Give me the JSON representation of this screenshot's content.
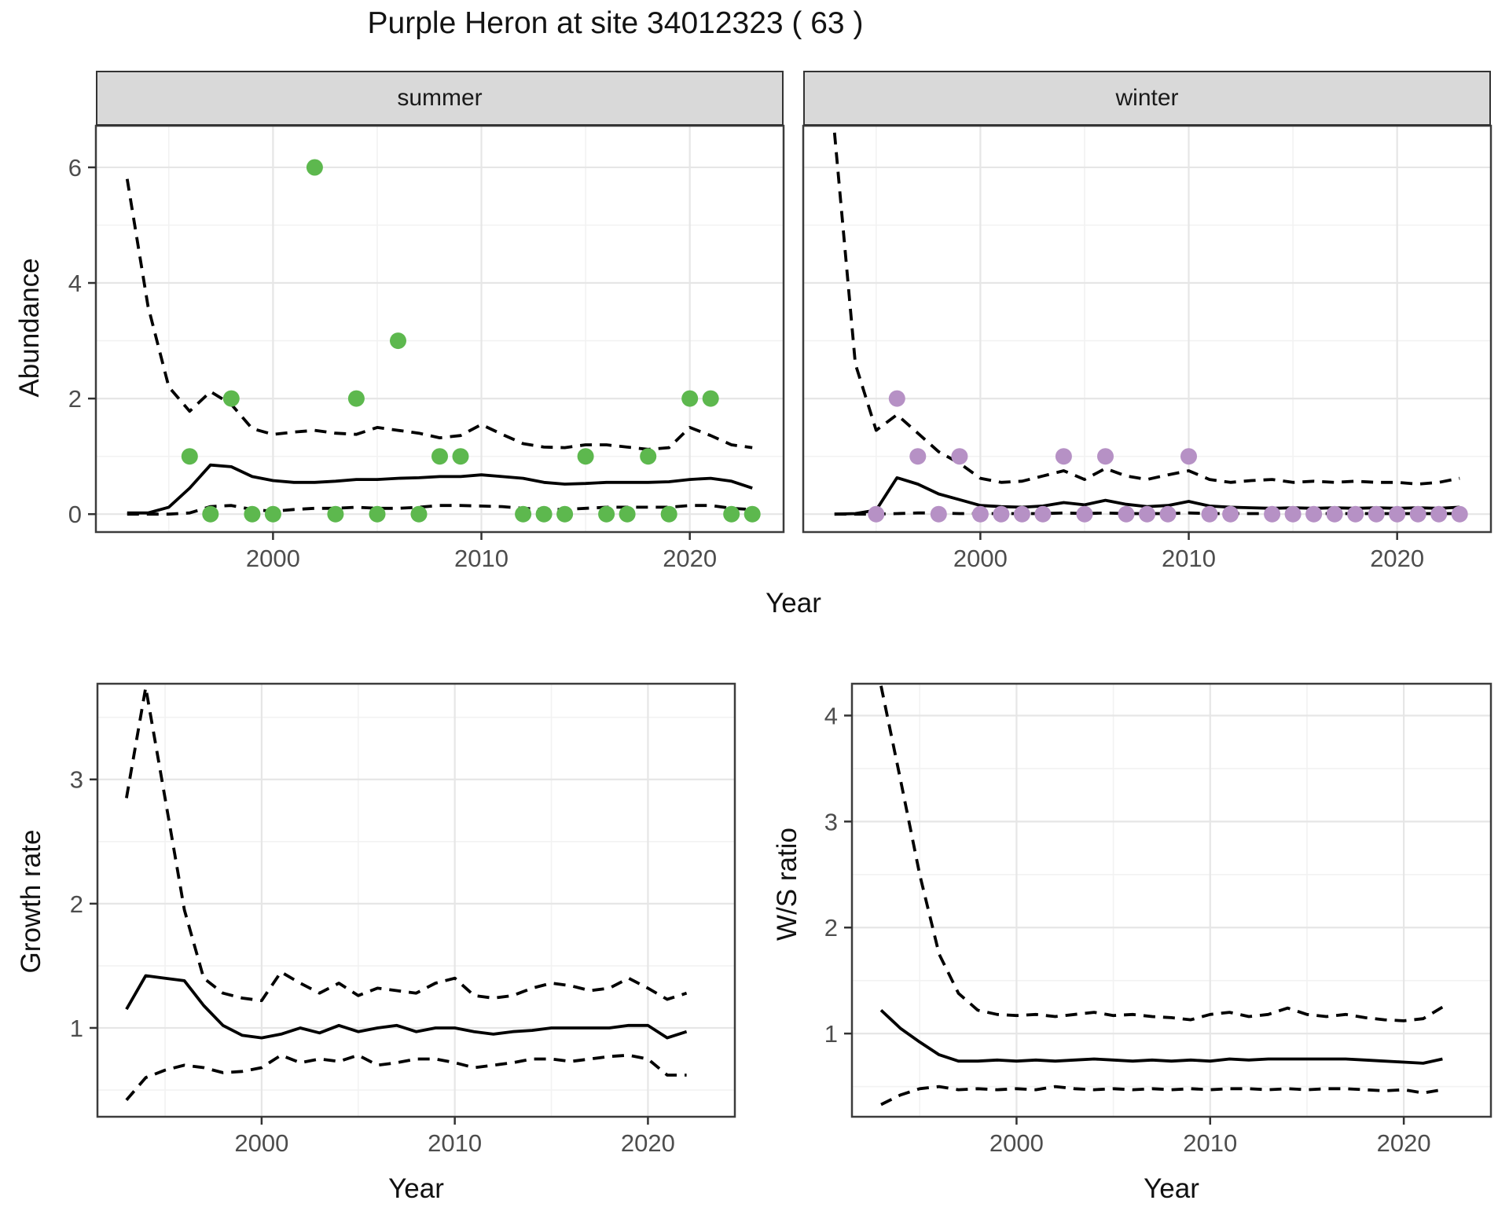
{
  "title": "Purple Heron at site 34012323 ( 63 )",
  "facet_labels": {
    "summer": "summer",
    "winter": "winter"
  },
  "axis_titles": {
    "x": "Year",
    "y_abundance": "Abundance",
    "y_growth": "Growth rate",
    "y_ws": "W/S ratio"
  },
  "colors": {
    "summer_points": "#5db84e",
    "winter_points": "#b691c5",
    "line": "#000000",
    "strip_bg": "#d9d9d9",
    "strip_border": "#333333",
    "panel_border": "#3c3c3c",
    "grid_major": "#e6e6e6",
    "grid_minor": "#f2f2f2",
    "tick_text": "#4d4d4d"
  },
  "chart_data": [
    {
      "id": "abundance-summer",
      "type": "line",
      "facet": "summer",
      "xlabel": "Year",
      "ylabel": "Abundance",
      "xlim": [
        1991.5,
        2024.5
      ],
      "ylim": [
        -0.31,
        6.72
      ],
      "xticks": [
        2000,
        2010,
        2020
      ],
      "xticks_minor": [
        1995,
        2005,
        2015
      ],
      "yticks": [
        0,
        2,
        4,
        6
      ],
      "yticks_minor": [
        1,
        3,
        5
      ],
      "x": [
        1993,
        1994,
        1995,
        1996,
        1997,
        1998,
        1999,
        2000,
        2001,
        2002,
        2003,
        2004,
        2005,
        2006,
        2007,
        2008,
        2009,
        2010,
        2011,
        2012,
        2013,
        2014,
        2015,
        2016,
        2017,
        2018,
        2019,
        2020,
        2021,
        2022,
        2023
      ],
      "series": [
        {
          "name": "mean",
          "style": "solid",
          "values": [
            0.02,
            0.02,
            0.12,
            0.45,
            0.85,
            0.82,
            0.65,
            0.58,
            0.55,
            0.55,
            0.57,
            0.6,
            0.6,
            0.62,
            0.63,
            0.65,
            0.65,
            0.68,
            0.65,
            0.62,
            0.55,
            0.52,
            0.53,
            0.55,
            0.55,
            0.55,
            0.56,
            0.6,
            0.62,
            0.57,
            0.45
          ]
        },
        {
          "name": "upper_ci",
          "style": "dashed",
          "values": [
            5.8,
            3.6,
            2.2,
            1.78,
            2.12,
            1.9,
            1.48,
            1.38,
            1.42,
            1.45,
            1.4,
            1.38,
            1.5,
            1.45,
            1.4,
            1.32,
            1.36,
            1.55,
            1.38,
            1.22,
            1.16,
            1.15,
            1.2,
            1.2,
            1.16,
            1.12,
            1.15,
            1.5,
            1.36,
            1.2,
            1.15
          ]
        },
        {
          "name": "lower_ci",
          "style": "dashed",
          "values": [
            0.0,
            0.0,
            0.0,
            0.02,
            0.13,
            0.15,
            0.08,
            0.05,
            0.08,
            0.1,
            0.1,
            0.12,
            0.1,
            0.1,
            0.12,
            0.15,
            0.15,
            0.14,
            0.13,
            0.1,
            0.08,
            0.08,
            0.1,
            0.12,
            0.12,
            0.12,
            0.12,
            0.15,
            0.15,
            0.1,
            0.08
          ]
        }
      ],
      "point_color": "#5db84e",
      "points": [
        [
          1996,
          1
        ],
        [
          1997,
          0
        ],
        [
          1998,
          2
        ],
        [
          1999,
          0
        ],
        [
          2000,
          0
        ],
        [
          2002,
          6
        ],
        [
          2003,
          0
        ],
        [
          2004,
          2
        ],
        [
          2005,
          0
        ],
        [
          2006,
          3
        ],
        [
          2007,
          0
        ],
        [
          2008,
          1
        ],
        [
          2009,
          1
        ],
        [
          2012,
          0
        ],
        [
          2013,
          0
        ],
        [
          2014,
          0
        ],
        [
          2015,
          1
        ],
        [
          2016,
          0
        ],
        [
          2017,
          0
        ],
        [
          2018,
          1
        ],
        [
          2019,
          0
        ],
        [
          2020,
          2
        ],
        [
          2021,
          2
        ],
        [
          2022,
          0
        ],
        [
          2023,
          0
        ]
      ]
    },
    {
      "id": "abundance-winter",
      "type": "line",
      "facet": "winter",
      "xlabel": "Year",
      "ylabel": "Abundance",
      "xlim": [
        1991.5,
        2024.5
      ],
      "ylim": [
        -0.31,
        6.72
      ],
      "xticks": [
        2000,
        2010,
        2020
      ],
      "xticks_minor": [
        1995,
        2005,
        2015
      ],
      "yticks": [
        0,
        2,
        4,
        6
      ],
      "yticks_minor": [
        1,
        3,
        5
      ],
      "x": [
        1993,
        1994,
        1995,
        1996,
        1997,
        1998,
        1999,
        2000,
        2001,
        2002,
        2003,
        2004,
        2005,
        2006,
        2007,
        2008,
        2009,
        2010,
        2011,
        2012,
        2013,
        2014,
        2015,
        2016,
        2017,
        2018,
        2019,
        2020,
        2021,
        2022,
        2023
      ],
      "series": [
        {
          "name": "mean",
          "style": "solid",
          "values": [
            0.0,
            0.01,
            0.07,
            0.63,
            0.52,
            0.35,
            0.25,
            0.15,
            0.13,
            0.12,
            0.14,
            0.2,
            0.16,
            0.24,
            0.17,
            0.13,
            0.15,
            0.22,
            0.14,
            0.12,
            0.11,
            0.1,
            0.11,
            0.1,
            0.11,
            0.1,
            0.11,
            0.1,
            0.11,
            0.1,
            0.12
          ]
        },
        {
          "name": "upper_ci",
          "style": "dashed",
          "values": [
            6.6,
            2.6,
            1.45,
            1.72,
            1.4,
            1.08,
            0.88,
            0.62,
            0.55,
            0.57,
            0.66,
            0.75,
            0.6,
            0.79,
            0.66,
            0.6,
            0.68,
            0.75,
            0.6,
            0.55,
            0.58,
            0.6,
            0.55,
            0.57,
            0.55,
            0.57,
            0.55,
            0.55,
            0.52,
            0.55,
            0.62
          ]
        },
        {
          "name": "lower_ci",
          "style": "dashed",
          "values": [
            0.0,
            0.0,
            0.0,
            0.01,
            0.02,
            0.02,
            0.01,
            0.01,
            0.01,
            0.01,
            0.01,
            0.02,
            0.01,
            0.02,
            0.01,
            0.01,
            0.01,
            0.02,
            0.01,
            0.01,
            0.01,
            0.01,
            0.01,
            0.01,
            0.01,
            0.01,
            0.01,
            0.01,
            0.01,
            0.01,
            0.01
          ]
        }
      ],
      "point_color": "#b691c5",
      "points": [
        [
          1995,
          0
        ],
        [
          1996,
          2
        ],
        [
          1997,
          1
        ],
        [
          1998,
          0
        ],
        [
          1999,
          1
        ],
        [
          2000,
          0
        ],
        [
          2001,
          0
        ],
        [
          2002,
          0
        ],
        [
          2003,
          0
        ],
        [
          2004,
          1
        ],
        [
          2005,
          0
        ],
        [
          2006,
          1
        ],
        [
          2007,
          0
        ],
        [
          2008,
          0
        ],
        [
          2009,
          0
        ],
        [
          2010,
          1
        ],
        [
          2011,
          0
        ],
        [
          2012,
          0
        ],
        [
          2014,
          0
        ],
        [
          2015,
          0
        ],
        [
          2016,
          0
        ],
        [
          2017,
          0
        ],
        [
          2018,
          0
        ],
        [
          2019,
          0
        ],
        [
          2020,
          0
        ],
        [
          2021,
          0
        ],
        [
          2022,
          0
        ],
        [
          2023,
          0
        ]
      ]
    },
    {
      "id": "growth-rate",
      "type": "line",
      "facet": null,
      "xlabel": "Year",
      "ylabel": "Growth rate",
      "xlim": [
        1991.5,
        2024.5
      ],
      "ylim": [
        0.285,
        3.77
      ],
      "xticks": [
        2000,
        2010,
        2020
      ],
      "xticks_minor": [
        1995,
        2005,
        2015
      ],
      "yticks": [
        1,
        2,
        3
      ],
      "yticks_minor": [
        0.5,
        1.5,
        2.5,
        3.5
      ],
      "x": [
        1993,
        1994,
        1995,
        1996,
        1997,
        1998,
        1999,
        2000,
        2001,
        2002,
        2003,
        2004,
        2005,
        2006,
        2007,
        2008,
        2009,
        2010,
        2011,
        2012,
        2013,
        2014,
        2015,
        2016,
        2017,
        2018,
        2019,
        2020,
        2021,
        2022
      ],
      "series": [
        {
          "name": "mean",
          "style": "solid",
          "values": [
            1.15,
            1.42,
            1.4,
            1.38,
            1.18,
            1.02,
            0.94,
            0.92,
            0.95,
            1.0,
            0.96,
            1.02,
            0.97,
            1.0,
            1.02,
            0.97,
            1.0,
            1.0,
            0.97,
            0.95,
            0.97,
            0.98,
            1.0,
            1.0,
            1.0,
            1.0,
            1.02,
            1.02,
            0.92,
            0.97
          ]
        },
        {
          "name": "upper_ci",
          "style": "dashed",
          "values": [
            2.85,
            3.74,
            2.85,
            1.95,
            1.4,
            1.28,
            1.24,
            1.22,
            1.45,
            1.36,
            1.28,
            1.36,
            1.26,
            1.32,
            1.3,
            1.28,
            1.36,
            1.4,
            1.26,
            1.24,
            1.26,
            1.32,
            1.36,
            1.34,
            1.3,
            1.32,
            1.4,
            1.32,
            1.23,
            1.28
          ]
        },
        {
          "name": "lower_ci",
          "style": "dashed",
          "values": [
            0.42,
            0.6,
            0.66,
            0.7,
            0.68,
            0.64,
            0.65,
            0.68,
            0.78,
            0.72,
            0.75,
            0.73,
            0.78,
            0.7,
            0.72,
            0.75,
            0.75,
            0.72,
            0.68,
            0.7,
            0.72,
            0.75,
            0.75,
            0.73,
            0.75,
            0.77,
            0.78,
            0.75,
            0.62,
            0.62
          ]
        }
      ],
      "point_color": null,
      "points": []
    },
    {
      "id": "ws-ratio",
      "type": "line",
      "facet": null,
      "xlabel": "Year",
      "ylabel": "W/S ratio",
      "xlim": [
        1991.5,
        2024.5
      ],
      "ylim": [
        0.215,
        4.3
      ],
      "xticks": [
        2000,
        2010,
        2020
      ],
      "xticks_minor": [
        1995,
        2005,
        2015
      ],
      "yticks": [
        1,
        2,
        3,
        4
      ],
      "yticks_minor": [
        0.5,
        1.5,
        2.5,
        3.5
      ],
      "x": [
        1993,
        1994,
        1995,
        1996,
        1997,
        1998,
        1999,
        2000,
        2001,
        2002,
        2003,
        2004,
        2005,
        2006,
        2007,
        2008,
        2009,
        2010,
        2011,
        2012,
        2013,
        2014,
        2015,
        2016,
        2017,
        2018,
        2019,
        2020,
        2021,
        2022
      ],
      "series": [
        {
          "name": "mean",
          "style": "solid",
          "values": [
            1.22,
            1.05,
            0.92,
            0.8,
            0.74,
            0.74,
            0.75,
            0.74,
            0.75,
            0.74,
            0.75,
            0.76,
            0.75,
            0.74,
            0.75,
            0.74,
            0.75,
            0.74,
            0.76,
            0.75,
            0.76,
            0.76,
            0.76,
            0.76,
            0.76,
            0.75,
            0.74,
            0.73,
            0.72,
            0.76
          ]
        },
        {
          "name": "upper_ci",
          "style": "dashed",
          "values": [
            4.28,
            3.4,
            2.5,
            1.75,
            1.38,
            1.22,
            1.18,
            1.17,
            1.18,
            1.16,
            1.18,
            1.2,
            1.17,
            1.18,
            1.16,
            1.15,
            1.13,
            1.18,
            1.2,
            1.16,
            1.18,
            1.24,
            1.18,
            1.16,
            1.18,
            1.15,
            1.13,
            1.12,
            1.14,
            1.25
          ]
        },
        {
          "name": "lower_ci",
          "style": "dashed",
          "values": [
            0.33,
            0.42,
            0.48,
            0.5,
            0.47,
            0.48,
            0.47,
            0.48,
            0.47,
            0.5,
            0.48,
            0.47,
            0.48,
            0.47,
            0.48,
            0.47,
            0.48,
            0.47,
            0.48,
            0.48,
            0.47,
            0.48,
            0.47,
            0.48,
            0.48,
            0.47,
            0.46,
            0.47,
            0.44,
            0.47
          ]
        }
      ],
      "point_color": null,
      "points": []
    }
  ]
}
